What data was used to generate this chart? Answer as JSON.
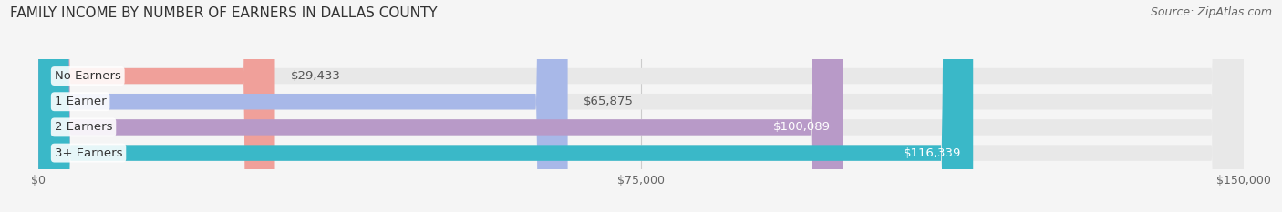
{
  "title": "FAMILY INCOME BY NUMBER OF EARNERS IN DALLAS COUNTY",
  "source": "Source: ZipAtlas.com",
  "categories": [
    "No Earners",
    "1 Earner",
    "2 Earners",
    "3+ Earners"
  ],
  "values": [
    29433,
    65875,
    100089,
    116339
  ],
  "bar_colors": [
    "#f0a09a",
    "#a8b8e8",
    "#b89ac8",
    "#3ab8c8"
  ],
  "label_colors": [
    "#666666",
    "#666666",
    "#ffffff",
    "#ffffff"
  ],
  "xlim": [
    0,
    150000
  ],
  "xticks": [
    0,
    75000,
    150000
  ],
  "xtick_labels": [
    "$0",
    "$75,000",
    "$150,000"
  ],
  "background_color": "#f5f5f5",
  "bar_background_color": "#e8e8e8",
  "bar_height": 0.62,
  "label_fontsize": 9.5,
  "title_fontsize": 11,
  "source_fontsize": 9
}
